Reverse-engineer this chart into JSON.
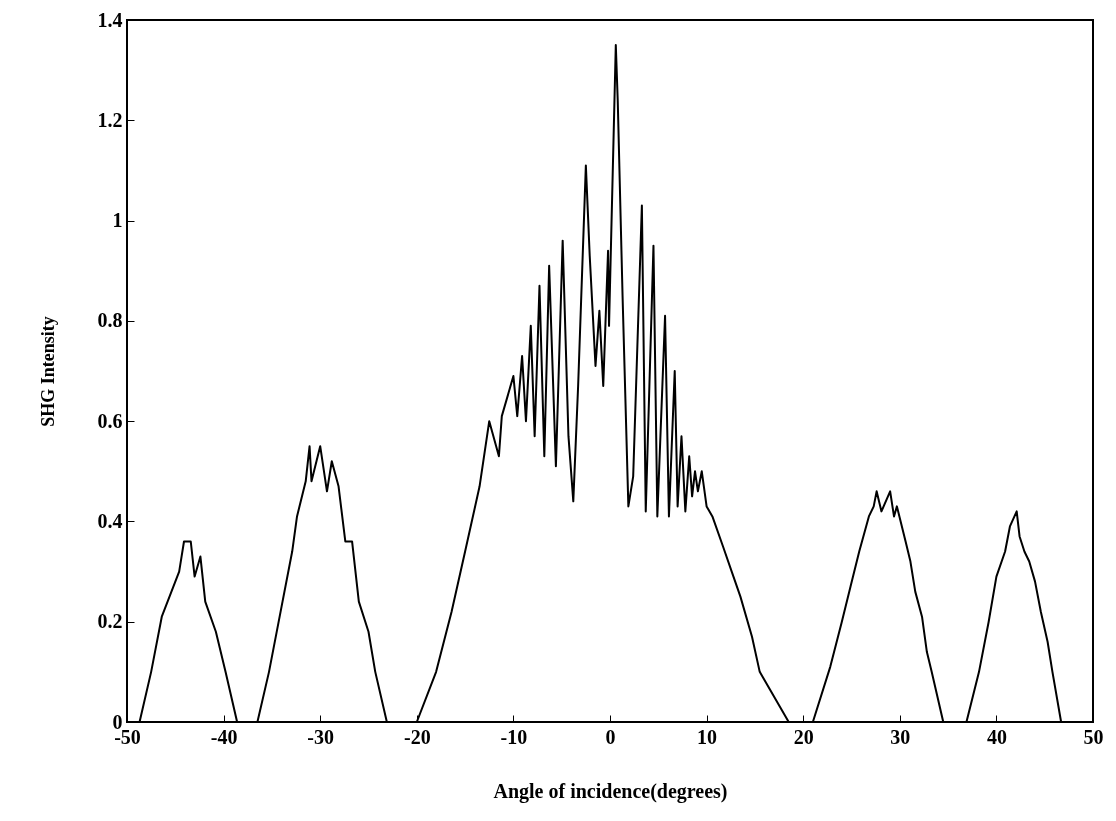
{
  "chart_data": {
    "type": "line",
    "xlabel": "Angle of incidence(degrees)",
    "ylabel": "SHG Intensity",
    "xlim": [
      -50,
      50
    ],
    "xticks": [
      -50,
      -40,
      -30,
      -20,
      -10,
      0,
      10,
      20,
      30,
      40,
      50
    ],
    "ylim": [
      0,
      1.4
    ],
    "yticks": [
      0,
      0.2,
      0.4,
      0.6,
      0.8,
      1,
      1.2,
      1.4
    ],
    "grid": false,
    "marker": "none",
    "line_style": "solid",
    "x": [
      -48.7,
      -47.5,
      -46.4,
      -44.6,
      -44.1,
      -43.4,
      -43.0,
      -42.4,
      -41.9,
      -40.8,
      -39.8,
      -38.6,
      -36.5,
      -35.3,
      -34.0,
      -32.9,
      -32.4,
      -31.5,
      -31.1,
      -30.9,
      -30.0,
      -29.3,
      -28.8,
      -28.1,
      -27.4,
      -26.7,
      -26.0,
      -25.0,
      -24.3,
      -23.1,
      -20.0,
      -18.0,
      -16.4,
      -15.0,
      -13.5,
      -12.5,
      -11.5,
      -11.2,
      -10.0,
      -9.6,
      -9.1,
      -8.7,
      -8.2,
      -7.8,
      -7.3,
      -6.8,
      -6.3,
      -5.6,
      -4.9,
      -4.3,
      -3.8,
      -3.3,
      -2.5,
      -2.1,
      -1.5,
      -1.1,
      -0.7,
      -0.2,
      -0.1,
      0.6,
      0.8,
      1.3,
      1.9,
      2.4,
      3.3,
      3.7,
      4.5,
      4.9,
      5.7,
      6.1,
      6.7,
      7.0,
      7.4,
      7.8,
      8.2,
      8.5,
      8.8,
      9.1,
      9.5,
      10.0,
      10.6,
      11.7,
      12.6,
      13.5,
      14.7,
      15.5,
      18.5,
      21.0,
      22.8,
      24.0,
      24.9,
      25.8,
      26.8,
      27.3,
      27.6,
      28.1,
      29.0,
      29.4,
      29.7,
      30.6,
      31.1,
      31.6,
      32.3,
      32.8,
      33.3,
      34.5,
      36.9,
      38.2,
      39.2,
      40.0,
      40.9,
      41.4,
      42.1,
      42.4,
      42.9,
      43.4,
      44.0,
      44.6,
      45.3,
      45.8,
      46.7
    ],
    "series": [
      {
        "color": "#000000",
        "values": [
          0,
          0.1,
          0.21,
          0.3,
          0.36,
          0.36,
          0.29,
          0.33,
          0.24,
          0.18,
          0.1,
          0,
          0,
          0.1,
          0.23,
          0.34,
          0.41,
          0.48,
          0.55,
          0.48,
          0.55,
          0.46,
          0.52,
          0.47,
          0.36,
          0.36,
          0.24,
          0.18,
          0.1,
          0,
          0,
          0.1,
          0.22,
          0.34,
          0.47,
          0.6,
          0.53,
          0.61,
          0.69,
          0.61,
          0.73,
          0.6,
          0.79,
          0.57,
          0.87,
          0.53,
          0.91,
          0.51,
          0.96,
          0.57,
          0.44,
          0.67,
          1.11,
          0.93,
          0.71,
          0.82,
          0.67,
          0.94,
          0.79,
          1.35,
          1.24,
          0.85,
          0.43,
          0.49,
          1.03,
          0.42,
          0.95,
          0.41,
          0.81,
          0.41,
          0.7,
          0.43,
          0.57,
          0.42,
          0.53,
          0.45,
          0.5,
          0.46,
          0.5,
          0.43,
          0.41,
          0.35,
          0.3,
          0.25,
          0.17,
          0.1,
          0,
          0,
          0.11,
          0.2,
          0.27,
          0.34,
          0.41,
          0.43,
          0.46,
          0.42,
          0.46,
          0.41,
          0.43,
          0.36,
          0.32,
          0.26,
          0.21,
          0.14,
          0.1,
          0,
          0,
          0.1,
          0.2,
          0.29,
          0.34,
          0.39,
          0.42,
          0.37,
          0.34,
          0.32,
          0.28,
          0.22,
          0.16,
          0.1,
          0
        ]
      }
    ]
  }
}
